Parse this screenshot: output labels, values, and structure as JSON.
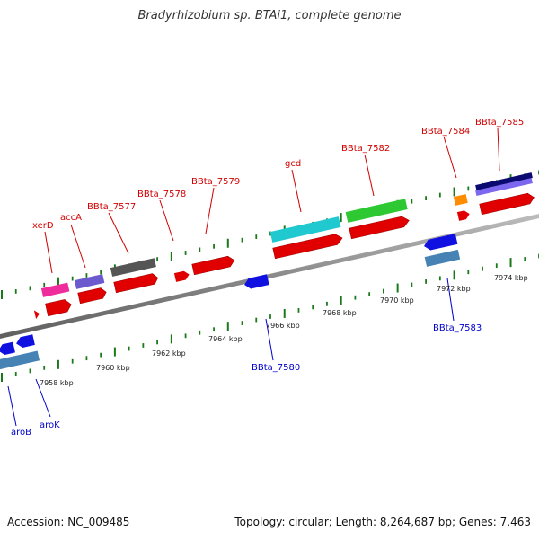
{
  "title": "Bradyrhizobium sp. BTAi1, complete genome",
  "footer": {
    "accession": "Accession: NC_009485",
    "stats": "Topology: circular; Length: 8,264,687 bp; Genes: 7,463"
  },
  "colors": {
    "forward_label": "#d00000",
    "reverse_label": "#0000cc",
    "tick": "#1a7a1a",
    "backbone": "#888888"
  },
  "ruler_labels": [
    "7958 kbp",
    "7960 kbp",
    "7962 kbp",
    "7964 kbp",
    "7966 kbp",
    "7968 kbp",
    "7970 kbp",
    "7972 kbp",
    "7974 kbp"
  ],
  "forward_genes": [
    "xerD",
    "accA",
    "BBta_7577",
    "BBta_7578",
    "BBta_7579",
    "gcd",
    "BBta_7582",
    "BBta_7584",
    "BBta_7585"
  ],
  "reverse_genes": [
    "aroB",
    "aroK",
    "BBta_7580",
    "BBta_7583"
  ]
}
